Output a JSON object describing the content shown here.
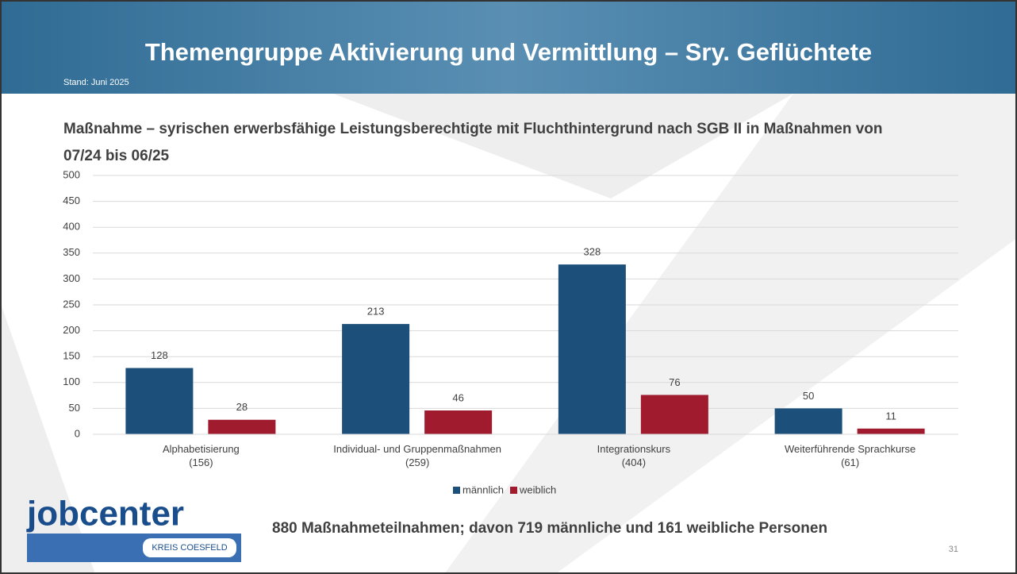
{
  "header": {
    "title": "Themengruppe Aktivierung und Vermittlung – Sry. Geflüchtete",
    "subtitle": "Stand: Juni 2025"
  },
  "chart_data": {
    "type": "bar",
    "title": "Maßnahme – syrischen erwerbsfähige Leistungsberechtigte mit Fluchthintergrund nach SGB II in Maßnahmen von 07/24 bis 06/25",
    "categories": [
      "Alphabetisierung\n(156)",
      "Individual- und Gruppenmaßnahmen\n(259)",
      "Integrationskurs\n(404)",
      "Weiterführende Sprachkurse\n(61)"
    ],
    "series": [
      {
        "name": "männlich",
        "color": "#1c4f7a",
        "values": [
          128,
          213,
          328,
          50
        ]
      },
      {
        "name": "weiblich",
        "color": "#a01b2e",
        "values": [
          28,
          46,
          76,
          11
        ]
      }
    ],
    "ylim": [
      0,
      500
    ],
    "yticks": [
      0,
      50,
      100,
      150,
      200,
      250,
      300,
      350,
      400,
      450,
      500
    ],
    "grid": true,
    "legend": "bottom"
  },
  "footer": {
    "summary": "880 Maßnahmeteilnahmen; davon 719 männliche und 161 weibliche Personen",
    "page": "31"
  },
  "logo": {
    "name": "jobcenter",
    "subtitle": "KREIS COESFELD"
  }
}
